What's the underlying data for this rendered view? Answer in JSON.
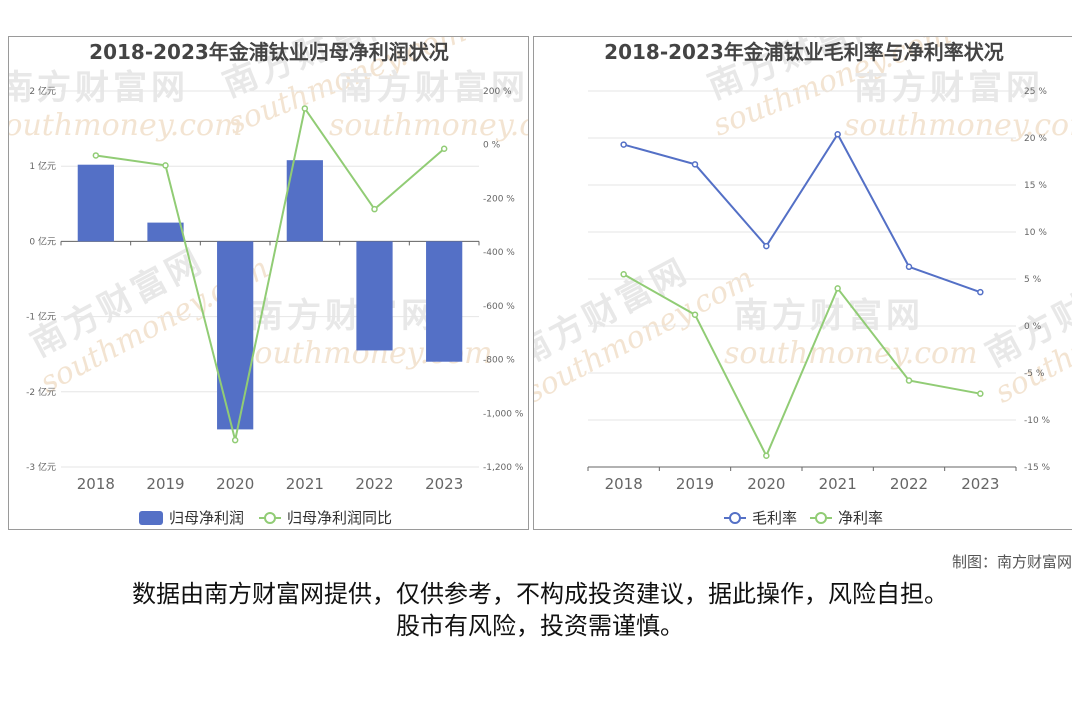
{
  "colors": {
    "bar": "#5470c6",
    "gross": "#5470c6",
    "net": "#91cc75",
    "grid": "#e6e6e6",
    "watermark": "#eeeeee"
  },
  "watermark_text": "南方财富网",
  "watermark_url": "southmoney.com",
  "credit": "制图：南方财富网",
  "disclaimer": {
    "line1": "数据由南方财富网提供，仅供参考，不构成投资建议，据此操作，风险自担。",
    "line2": "股市有风险，投资需谨慎。"
  },
  "chart_data": [
    {
      "type": "bar",
      "title": "2018-2023年金浦钛业归母净利润状况",
      "categories": [
        "2018",
        "2019",
        "2020",
        "2021",
        "2022",
        "2023"
      ],
      "series": [
        {
          "name": "归母净利润",
          "type": "bar",
          "axis": "left",
          "values": [
            1.02,
            0.25,
            -2.5,
            1.08,
            -1.45,
            -1.6
          ]
        },
        {
          "name": "归母净利润同比",
          "type": "line",
          "axis": "right",
          "values": [
            -40,
            -77,
            -1100,
            135,
            -240,
            -15
          ]
        }
      ],
      "y_left": {
        "ticks": [
          "2 亿元",
          "1 亿元",
          "0 亿元",
          "-1 亿元",
          "-2 亿元",
          "-3 亿元"
        ],
        "ylim": [
          -3,
          2
        ]
      },
      "y_right": {
        "ticks": [
          "200 %",
          "0 %",
          "-200 %",
          "-400 %",
          "-600 %",
          "-800 %",
          "-1,000 %",
          "-1,200 %"
        ],
        "ylim": [
          -1200,
          200
        ]
      },
      "legend": [
        "归母净利润",
        "归母净利润同比"
      ],
      "legend_position": "bottom-center",
      "grid": true
    },
    {
      "type": "line",
      "title": "2018-2023年金浦钛业毛利率与净利率状况",
      "categories": [
        "2018",
        "2019",
        "2020",
        "2021",
        "2022",
        "2023"
      ],
      "series": [
        {
          "name": "毛利率",
          "values": [
            19.3,
            17.2,
            8.5,
            20.4,
            6.3,
            3.6
          ]
        },
        {
          "name": "净利率",
          "values": [
            5.5,
            1.2,
            -13.8,
            4.0,
            -5.8,
            -7.2
          ]
        }
      ],
      "y_right": {
        "ticks": [
          "25 %",
          "20 %",
          "15 %",
          "10 %",
          "5 %",
          "0 %",
          "-5 %",
          "-10 %",
          "-15 %"
        ],
        "ylim": [
          -15,
          25
        ]
      },
      "legend": [
        "毛利率",
        "净利率"
      ],
      "legend_position": "bottom-center",
      "grid": true
    }
  ]
}
